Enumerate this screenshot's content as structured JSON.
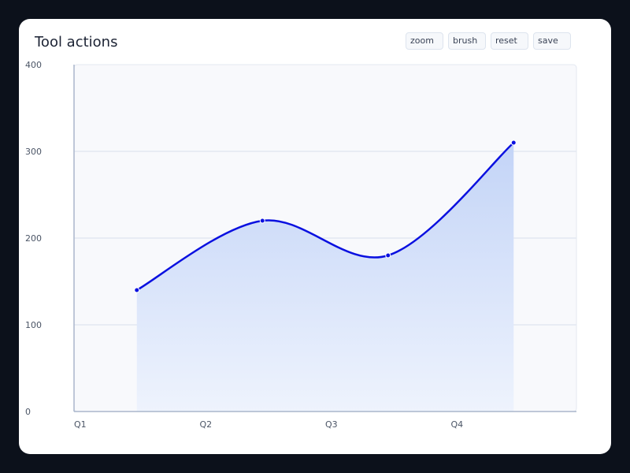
{
  "title": "Tool actions",
  "toolbar": [
    {
      "label": "zoom"
    },
    {
      "label": "brush"
    },
    {
      "label": "reset"
    },
    {
      "label": "save"
    }
  ],
  "colors": {
    "line": "#0a10e0",
    "area_top": "#c3d4f7",
    "area_bottom": "#eef3fd",
    "plot_bg": "#f8f9fc",
    "grid": "#e3e8f1",
    "axis": "#aab6cc"
  },
  "chart_data": {
    "type": "area",
    "title": "Tool actions",
    "categories": [
      "Q1",
      "Q2",
      "Q3",
      "Q4"
    ],
    "x": [
      0.5,
      1.5,
      2.5,
      3.5
    ],
    "values": [
      140,
      220,
      180,
      310
    ],
    "xlim": [
      0,
      4
    ],
    "ylim": [
      0,
      400
    ],
    "yticks": [
      0,
      100,
      200,
      300,
      400
    ],
    "curve": "smooth",
    "grid": true,
    "legend": "none"
  }
}
